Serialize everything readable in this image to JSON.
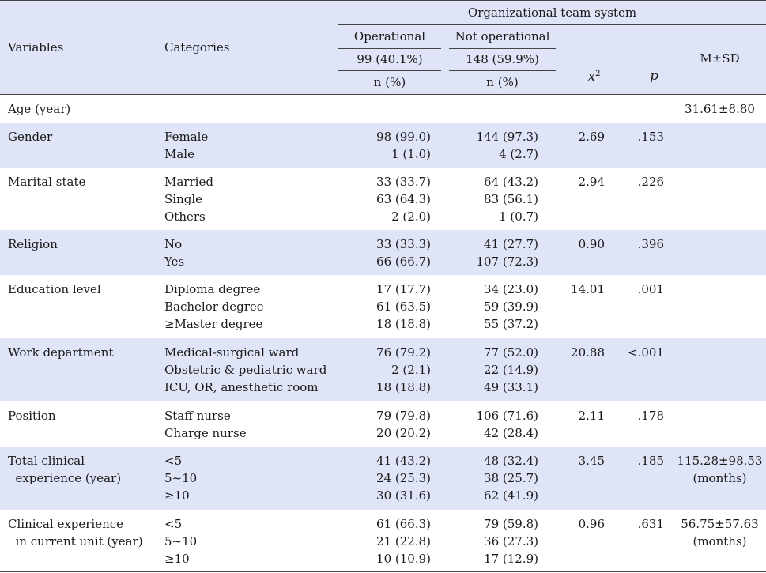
{
  "header": {
    "variables": "Variables",
    "categories": "Categories",
    "group_title": "Organizational team system",
    "operational": "Operational",
    "operational_n": "99 (40.1%)",
    "not_operational": "Not operational",
    "not_operational_n": "148 (59.9%)",
    "n_pct": "n (%)",
    "chi_base": "x",
    "chi_sup": "2",
    "p": "p",
    "msd": "M±SD"
  },
  "rows": [
    {
      "variable": [
        "Age (year)"
      ],
      "categories": [],
      "operational": [],
      "not_operational": [],
      "chi2": "",
      "p": "",
      "msd": [
        "31.61±8.80"
      ]
    },
    {
      "variable": [
        "Gender"
      ],
      "categories": [
        "Female",
        "Male"
      ],
      "operational": [
        "98 (99.0)",
        "1 (1.0)"
      ],
      "not_operational": [
        "144 (97.3)",
        "4 (2.7)"
      ],
      "chi2": "2.69",
      "p": ".153",
      "msd": []
    },
    {
      "variable": [
        "Marital state"
      ],
      "categories": [
        "Married",
        "Single",
        "Others"
      ],
      "operational": [
        "33 (33.7)",
        "63 (64.3)",
        "2 (2.0)"
      ],
      "not_operational": [
        "64 (43.2)",
        "83 (56.1)",
        "1 (0.7)"
      ],
      "chi2": "2.94",
      "p": ".226",
      "msd": []
    },
    {
      "variable": [
        "Religion"
      ],
      "categories": [
        "No",
        "Yes"
      ],
      "operational": [
        "33 (33.3)",
        "66 (66.7)"
      ],
      "not_operational": [
        "41 (27.7)",
        "107 (72.3)"
      ],
      "chi2": "0.90",
      "p": ".396",
      "msd": []
    },
    {
      "variable": [
        "Education level"
      ],
      "categories": [
        "Diploma degree",
        "Bachelor degree",
        "≥Master degree"
      ],
      "operational": [
        "17 (17.7)",
        "61 (63.5)",
        "18 (18.8)"
      ],
      "not_operational": [
        "34 (23.0)",
        "59 (39.9)",
        "55 (37.2)"
      ],
      "chi2": "14.01",
      "p": ".001",
      "msd": []
    },
    {
      "variable": [
        "Work department"
      ],
      "categories": [
        "Medical-surgical ward",
        "Obstetric & pediatric ward",
        "ICU, OR, anesthetic room"
      ],
      "operational": [
        "76 (79.2)",
        "2 (2.1)",
        "18 (18.8)"
      ],
      "not_operational": [
        "77 (52.0)",
        "22 (14.9)",
        "49 (33.1)"
      ],
      "chi2": "20.88",
      "p": "<.001",
      "msd": []
    },
    {
      "variable": [
        "Position"
      ],
      "categories": [
        "Staff nurse",
        "Charge nurse"
      ],
      "operational": [
        "79 (79.8)",
        "20 (20.2)"
      ],
      "not_operational": [
        "106 (71.6)",
        "42 (28.4)"
      ],
      "chi2": "2.11",
      "p": ".178",
      "msd": []
    },
    {
      "variable": [
        "Total clinical",
        "  experience (year)"
      ],
      "categories": [
        "<5",
        "5~10",
        "≥10"
      ],
      "operational": [
        "41 (43.2)",
        "24 (25.3)",
        "30 (31.6)"
      ],
      "not_operational": [
        "48 (32.4)",
        "38 (25.7)",
        "62 (41.9)"
      ],
      "chi2": "3.45",
      "p": ".185",
      "msd": [
        "115.28±98.53",
        "(months)"
      ]
    },
    {
      "variable": [
        "Clinical experience",
        "  in current unit (year)"
      ],
      "categories": [
        "<5",
        "5~10",
        "≥10"
      ],
      "operational": [
        "61 (66.3)",
        "21 (22.8)",
        "10 (10.9)"
      ],
      "not_operational": [
        "79 (59.8)",
        "36 (27.3)",
        "17 (12.9)"
      ],
      "chi2": "0.96",
      "p": ".631",
      "msd": [
        "56.75±57.63",
        "(months)"
      ]
    }
  ]
}
